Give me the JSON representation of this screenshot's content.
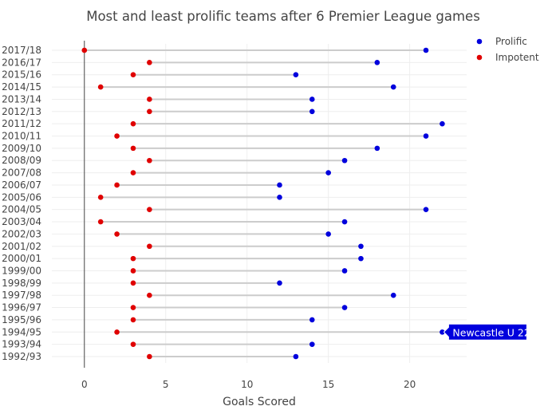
{
  "chart_data": {
    "type": "dumbbell",
    "title": "Most and least prolific teams after 6 Premier League games",
    "xlabel": "Goals Scored",
    "ylabel": "",
    "xlim": [
      -2,
      23.5
    ],
    "xticks": [
      0,
      5,
      10,
      15,
      20
    ],
    "grid": true,
    "legend_position": "top-right",
    "categories": [
      "2017/18",
      "2016/17",
      "2015/16",
      "2014/15",
      "2013/14",
      "2012/13",
      "2011/12",
      "2010/11",
      "2009/10",
      "2008/09",
      "2007/08",
      "2006/07",
      "2005/06",
      "2004/05",
      "2003/04",
      "2002/03",
      "2001/02",
      "2000/01",
      "1999/00",
      "1998/99",
      "1997/98",
      "1996/97",
      "1995/96",
      "1994/95",
      "1993/94",
      "1992/93"
    ],
    "series": [
      {
        "name": "Prolific",
        "color": "#0000dd",
        "values": [
          21,
          18,
          13,
          19,
          14,
          14,
          22,
          21,
          18,
          16,
          15,
          12,
          12,
          21,
          16,
          15,
          17,
          17,
          16,
          12,
          19,
          16,
          14,
          22,
          14,
          13
        ]
      },
      {
        "name": "Impotent",
        "color": "#e00000",
        "values": [
          0,
          4,
          3,
          1,
          4,
          4,
          3,
          2,
          3,
          4,
          3,
          2,
          1,
          4,
          1,
          2,
          4,
          3,
          3,
          3,
          4,
          3,
          3,
          2,
          3,
          4
        ]
      }
    ],
    "connector_color": "#cccccc",
    "annotation": {
      "text": "Newcastle U 22",
      "category": "1994/95",
      "value": 22,
      "series": "Prolific"
    }
  }
}
